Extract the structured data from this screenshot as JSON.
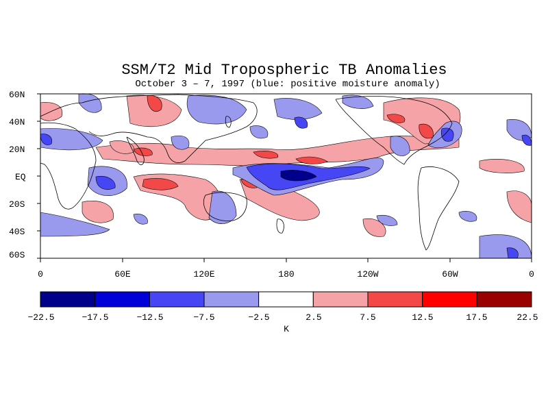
{
  "title": "SSM/T2 Mid Tropospheric TB Anomalies",
  "subtitle": "October 3 – 7, 1997 (blue: positive moisture anomaly)",
  "lat_labels": [
    "60N",
    "40N",
    "20N",
    "EQ",
    "20S",
    "40S",
    "60S"
  ],
  "lon_labels": [
    "0",
    "60E",
    "120E",
    "180",
    "120W",
    "60W",
    "0"
  ],
  "colorbar": {
    "labels": [
      "−22.5",
      "−17.5",
      "−12.5",
      "−7.5",
      "−2.5",
      "2.5",
      "7.5",
      "12.5",
      "17.5",
      "22.5"
    ],
    "unit": "K",
    "colors": [
      "#00008b",
      "#0000d8",
      "#4646f5",
      "#9999ee",
      "#ffffff",
      "#f5a3a6",
      "#f24848",
      "#ff0000",
      "#990000"
    ]
  },
  "colors": {
    "positive_light": "#f5a3a6",
    "positive_mid": "#f24848",
    "negative_light": "#9999ee",
    "negative_mid": "#4646f5",
    "negative_dark": "#00008b"
  }
}
